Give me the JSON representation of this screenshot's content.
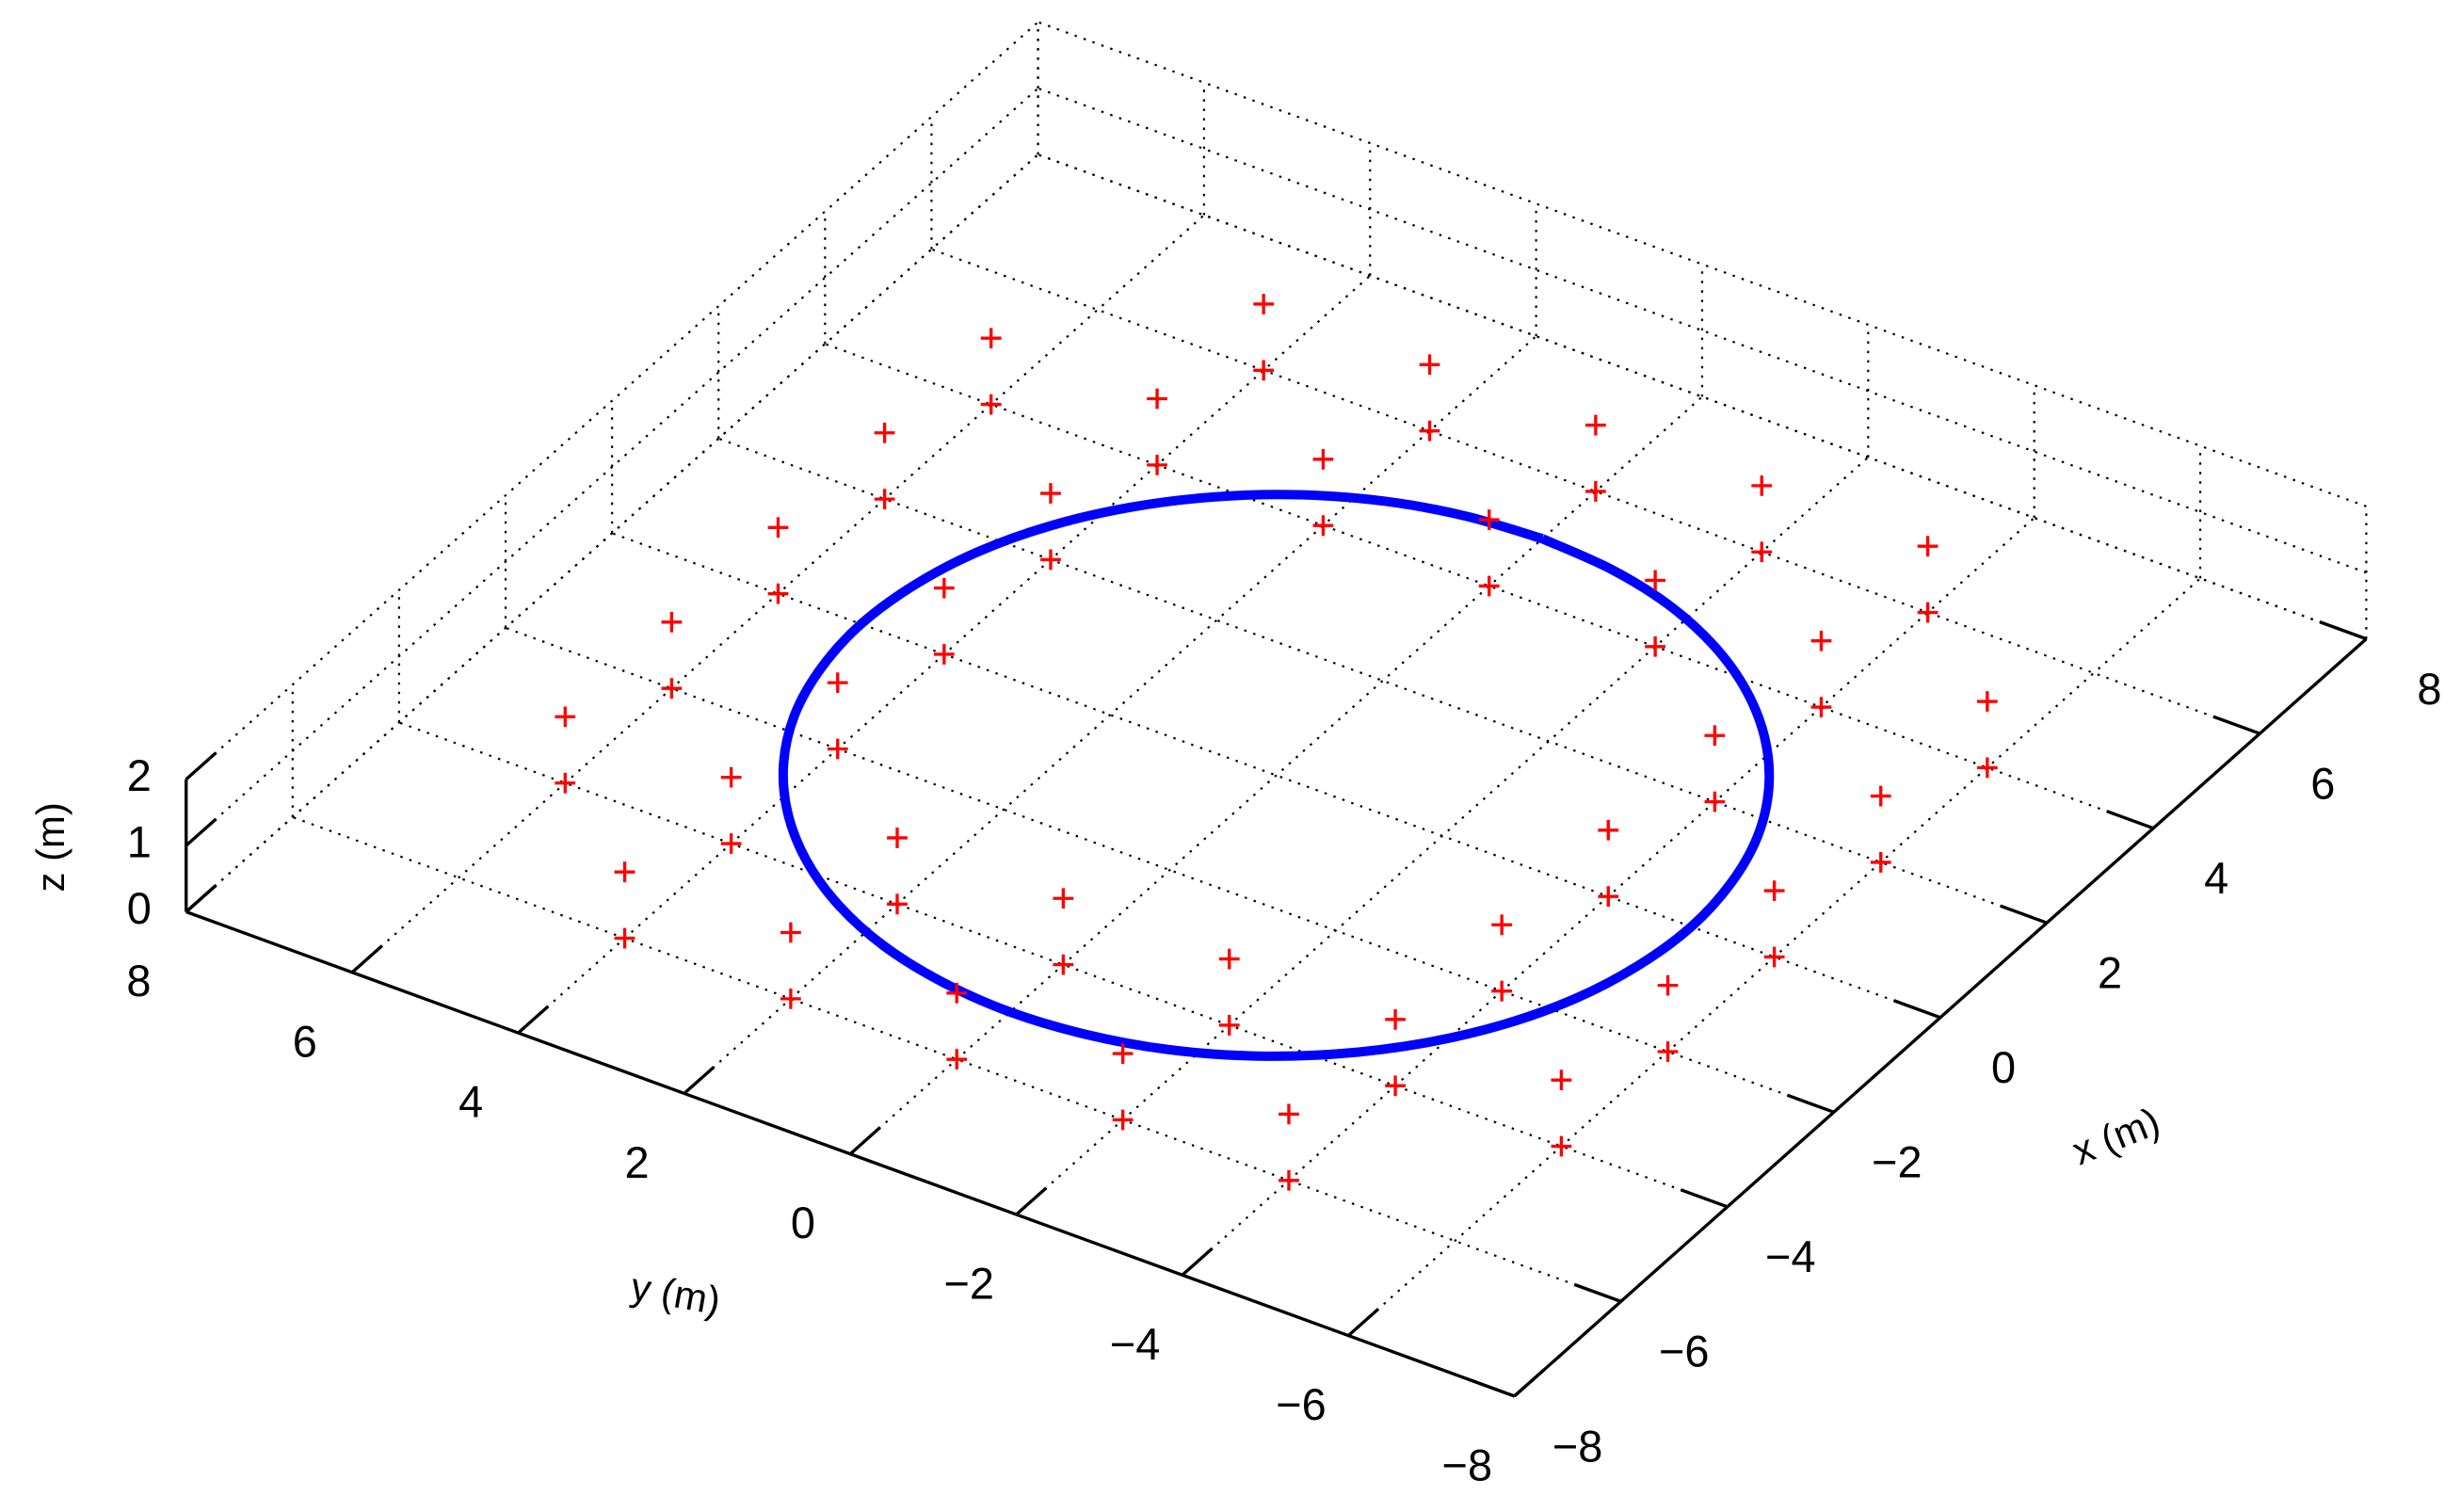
{
  "chart_data": {
    "type": "scatter3d",
    "xlim": [
      -8,
      8
    ],
    "ylim": [
      -8,
      8
    ],
    "zlim": [
      0,
      2
    ],
    "xticks": [
      {
        "value": -8,
        "label": "−8"
      },
      {
        "value": -6,
        "label": "−6"
      },
      {
        "value": -4,
        "label": "−4"
      },
      {
        "value": -2,
        "label": "−2"
      },
      0,
      2,
      4,
      6,
      8
    ],
    "yticks": [
      {
        "value": -8,
        "label": "−8"
      },
      {
        "value": -6,
        "label": "−6"
      },
      {
        "value": -4,
        "label": "−4"
      },
      {
        "value": -2,
        "label": "−2"
      },
      0,
      2,
      4,
      6,
      8
    ],
    "zticks": [
      0,
      1,
      2
    ],
    "xlabel": "x (m)",
    "ylabel": "y (m)",
    "zlabel": "z (m)",
    "grid": true,
    "series": [
      {
        "type": "line",
        "color": "#0000ff",
        "x": [
          5,
          4.92,
          4.7,
          4.33,
          3.83,
          3.21,
          2.5,
          1.71,
          0.87,
          0,
          -0.87,
          -1.71,
          -2.5,
          -3.21,
          -3.83,
          -4.33,
          -4.7,
          -4.92,
          -5,
          -4.92,
          -4.7,
          -4.33,
          -3.83,
          -3.21,
          -2.5,
          -1.71,
          -0.87,
          0,
          0.87,
          1.71,
          2.5,
          3.21,
          3.83,
          4.33,
          4.7,
          4.92,
          5
        ],
        "y": [
          0,
          0.87,
          1.71,
          2.5,
          3.21,
          3.83,
          4.33,
          4.7,
          4.92,
          5,
          4.92,
          4.7,
          4.33,
          3.83,
          3.21,
          2.5,
          1.71,
          0.87,
          0,
          -0.87,
          -1.71,
          -2.5,
          -3.21,
          -3.83,
          -4.33,
          -4.7,
          -4.92,
          -5,
          -4.92,
          -4.7,
          -4.33,
          -3.83,
          -3.21,
          -2.5,
          -1.71,
          -0.87,
          0
        ],
        "z": [
          0,
          0,
          0,
          0,
          0,
          0,
          0,
          0,
          0,
          0,
          0,
          0,
          0,
          0,
          0,
          0,
          0,
          0,
          0,
          0,
          0,
          0,
          0,
          0,
          0,
          0,
          0,
          0,
          0,
          0,
          0,
          0,
          0,
          0,
          0,
          0,
          0
        ]
      },
      {
        "type": "scatter",
        "marker": "+",
        "color": "#ff0000",
        "x": [
          6,
          4,
          2,
          0,
          -2,
          -4,
          -6,
          -6,
          -6,
          -6,
          -6,
          -4,
          -2,
          0,
          2,
          4,
          6,
          6,
          6,
          6,
          4,
          2,
          0,
          -2,
          -4,
          -4,
          -4,
          -4,
          -4,
          -2,
          0,
          2,
          4,
          4,
          4,
          4,
          6,
          4,
          2,
          0,
          -2,
          -4,
          -6,
          -6,
          -6,
          -6,
          -6,
          -4,
          -2,
          0,
          2,
          4,
          6,
          6,
          6,
          6,
          4,
          2,
          0,
          -2,
          -4,
          -4,
          -4,
          -4,
          -4,
          -2,
          0,
          2,
          4,
          4,
          4,
          4
        ],
        "y": [
          4,
          6,
          6,
          6,
          6,
          6,
          4,
          2,
          0,
          -2,
          -4,
          -6,
          -6,
          -6,
          -6,
          -6,
          -4,
          -2,
          0,
          2,
          4,
          4,
          4,
          4,
          4,
          2,
          0,
          -2,
          -4,
          -4,
          -4,
          -4,
          -4,
          -2,
          0,
          2,
          4,
          6,
          6,
          6,
          6,
          6,
          4,
          2,
          0,
          -2,
          -4,
          -6,
          -6,
          -6,
          -6,
          -6,
          -4,
          -2,
          0,
          2,
          4,
          4,
          4,
          4,
          4,
          2,
          0,
          -2,
          -4,
          -4,
          -4,
          -4,
          -4,
          -2,
          0,
          2
        ],
        "z": [
          0,
          0,
          0,
          0,
          0,
          0,
          0,
          0,
          0,
          0,
          0,
          0,
          0,
          0,
          0,
          0,
          0,
          0,
          0,
          0,
          0,
          0,
          0,
          0,
          0,
          0,
          0,
          0,
          0,
          0,
          0,
          0,
          0,
          0,
          0,
          0,
          1,
          1,
          1,
          1,
          1,
          1,
          1,
          1,
          1,
          1,
          1,
          1,
          1,
          1,
          1,
          1,
          1,
          1,
          1,
          1,
          1,
          1,
          1,
          1,
          1,
          1,
          1,
          1,
          1,
          1,
          1,
          1,
          1,
          1,
          1,
          1
        ]
      }
    ]
  }
}
